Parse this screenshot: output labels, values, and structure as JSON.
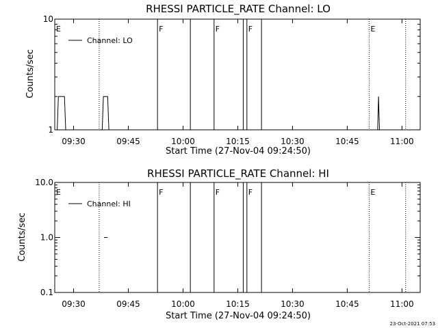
{
  "footer": {
    "timestamp": "23-Oct-2021 07:53"
  },
  "chart_data": [
    {
      "type": "line",
      "title": "RHESSI PARTICLE_RATE Channel: LO",
      "xlabel": "Start Time (27-Nov-04 09:24:50)",
      "ylabel": "Counts/sec",
      "yscale": "log",
      "ylim": [
        1,
        10
      ],
      "xlim": [
        "09:24:50",
        "11:05:00"
      ],
      "x_ticks": [
        "09:30",
        "09:45",
        "10:00",
        "10:15",
        "10:30",
        "10:45",
        "11:00"
      ],
      "y_ticks": [
        "1",
        "10"
      ],
      "legend": {
        "label": "Channel: LO",
        "position": "top-left"
      },
      "events": [
        {
          "label": "E",
          "time": "09:24:50",
          "style": "dotted"
        },
        {
          "label": "",
          "time": "09:37:00",
          "style": "dotted"
        },
        {
          "label": "F",
          "time": "09:53:00",
          "style": "solid"
        },
        {
          "label": "",
          "time": "10:02:00",
          "style": "solid"
        },
        {
          "label": "F",
          "time": "10:08:30",
          "style": "solid"
        },
        {
          "label": "",
          "time": "10:16:30",
          "style": "solid"
        },
        {
          "label": "F",
          "time": "10:17:30",
          "style": "solid"
        },
        {
          "label": "",
          "time": "10:21:30",
          "style": "solid"
        },
        {
          "label": "E",
          "time": "10:51:00",
          "style": "dotted"
        },
        {
          "label": "",
          "time": "11:01:00",
          "style": "dotted"
        }
      ],
      "series": [
        {
          "name": "Channel: LO",
          "segments": [
            {
              "x": [
                "09:25:30",
                "09:25:50",
                "09:27:30",
                "09:27:50"
              ],
              "y": [
                1,
                2,
                2,
                1
              ]
            },
            {
              "x": [
                "09:37:50",
                "09:38:10",
                "09:39:20",
                "09:39:40"
              ],
              "y": [
                1,
                2,
                2,
                1
              ]
            },
            {
              "x": [
                "10:53:20",
                "10:53:35",
                "10:53:50"
              ],
              "y": [
                1,
                2,
                1
              ]
            }
          ]
        }
      ]
    },
    {
      "type": "line",
      "title": "RHESSI PARTICLE_RATE Channel: HI",
      "xlabel": "Start Time (27-Nov-04 09:24:50)",
      "ylabel": "Counts/sec",
      "yscale": "log",
      "ylim": [
        0.1,
        10.0
      ],
      "xlim": [
        "09:24:50",
        "11:05:00"
      ],
      "x_ticks": [
        "09:30",
        "09:45",
        "10:00",
        "10:15",
        "10:30",
        "10:45",
        "11:00"
      ],
      "y_ticks": [
        "0.1",
        "1.0",
        "10.0"
      ],
      "legend": {
        "label": "Channel: HI",
        "position": "top-left"
      },
      "events": [
        {
          "label": "E",
          "time": "09:24:50",
          "style": "dotted"
        },
        {
          "label": "",
          "time": "09:37:00",
          "style": "dotted"
        },
        {
          "label": "F",
          "time": "09:53:00",
          "style": "solid"
        },
        {
          "label": "",
          "time": "10:02:00",
          "style": "solid"
        },
        {
          "label": "F",
          "time": "10:08:30",
          "style": "solid"
        },
        {
          "label": "",
          "time": "10:16:30",
          "style": "solid"
        },
        {
          "label": "F",
          "time": "10:17:30",
          "style": "solid"
        },
        {
          "label": "",
          "time": "10:21:30",
          "style": "solid"
        },
        {
          "label": "E",
          "time": "10:51:00",
          "style": "dotted"
        },
        {
          "label": "",
          "time": "11:01:00",
          "style": "dotted"
        }
      ],
      "series": [
        {
          "name": "Channel: HI",
          "segments": [
            {
              "x": [
                "09:38:20",
                "09:39:20"
              ],
              "y": [
                1.0,
                1.0
              ]
            }
          ]
        }
      ]
    }
  ]
}
